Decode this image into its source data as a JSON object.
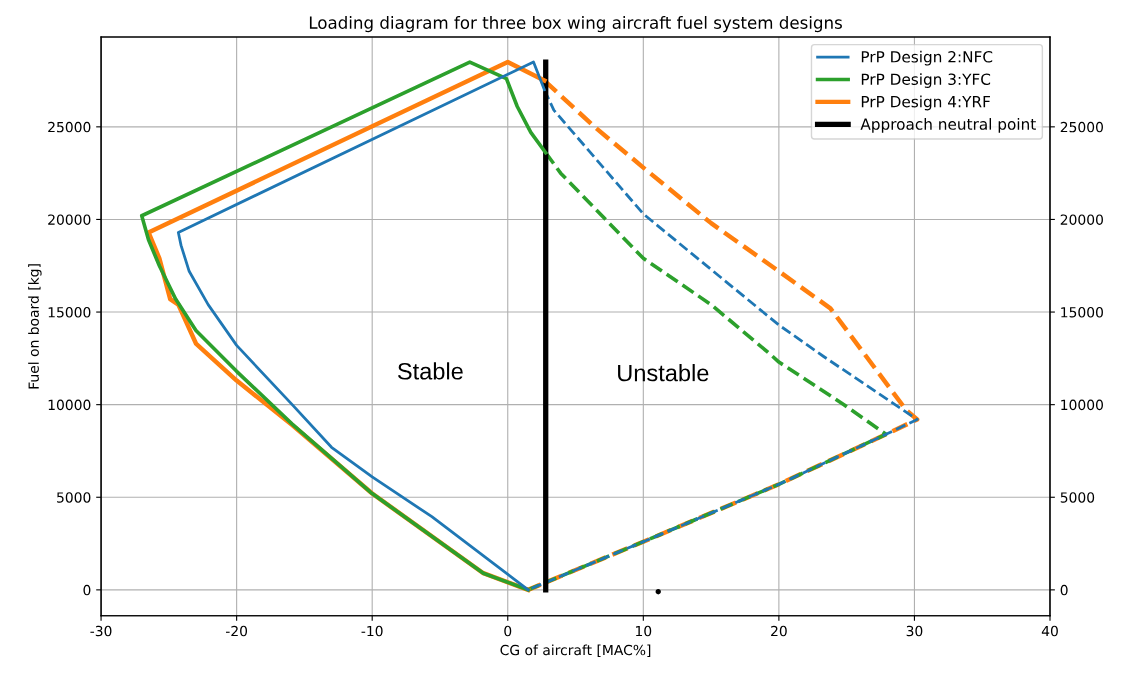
{
  "chart_data": {
    "type": "line",
    "title": "Loading diagram for three box wing aircraft fuel system designs",
    "xlabel": "CG of aircraft [MAC%]",
    "ylabel": "Fuel on board [kg]",
    "xlim": [
      -30,
      40
    ],
    "xticks": [
      -30,
      -20,
      -10,
      0,
      10,
      20,
      30,
      40
    ],
    "ylim": [
      -1400,
      29850
    ],
    "yticks": [
      0,
      5000,
      10000,
      15000,
      20000,
      25000
    ],
    "y2lim": [
      -1400,
      29850
    ],
    "y2ticks": [
      0,
      5000,
      10000,
      15000,
      20000,
      25000
    ],
    "grid": true,
    "legend": "top right",
    "annotations": [
      "Stable",
      "Unstable"
    ],
    "series": [
      {
        "name": "PrP Design 2:NFC",
        "color": "#1f77b4",
        "line_style": "solid",
        "x": [
          1.5,
          -5.6,
          -10.0,
          -13.0,
          -15.9,
          -20.0,
          -22.1,
          -23.5,
          -24.1,
          -24.3,
          1.9,
          2.7
        ],
        "values": [
          0,
          3950,
          6100,
          7700,
          10000,
          13200,
          15400,
          17200,
          18600,
          19300,
          28500,
          27000
        ]
      },
      {
        "name": "PrP Design 3:YFC",
        "color": "#2ca02c",
        "line_style": "solid",
        "x": [
          1.5,
          -1.8,
          -10.0,
          -15.9,
          -20.0,
          -23.0,
          -24.5,
          -25.7,
          -26.5,
          -27.0,
          -2.8,
          -0.1,
          0.7,
          1.7,
          2.8
        ],
        "values": [
          0,
          900,
          5200,
          8950,
          11800,
          14000,
          15700,
          17500,
          18900,
          20200,
          28500,
          27600,
          26100,
          24700,
          23600
        ]
      },
      {
        "name": "PrP Design 4:YRF",
        "color": "#ff7f0e",
        "line_style": "solid",
        "x": [
          1.5,
          -1.8,
          -10.0,
          -15.9,
          -20.0,
          -23.0,
          -24.3,
          -24.9,
          -25.7,
          -26.5,
          0.0,
          2.7
        ],
        "values": [
          0,
          900,
          5200,
          8900,
          11300,
          13300,
          15400,
          15700,
          17900,
          19300,
          28500,
          27500
        ]
      },
      {
        "name": "Approach neutral point",
        "color": "#000000",
        "line_style": "solid",
        "x": [
          2.8,
          2.8
        ],
        "values": [
          0,
          28500
        ]
      },
      {
        "color": "#1f77b4",
        "line_style": "dashed",
        "x": [
          2.7,
          3.4,
          10.0,
          15.0,
          20.0,
          23.3,
          30.2,
          27.9,
          20.0,
          10.0,
          2.8,
          1.5
        ],
        "values": [
          27000,
          25900,
          20300,
          17300,
          14300,
          12600,
          9200,
          8400,
          5700,
          2600,
          400,
          0
        ]
      },
      {
        "color": "#2ca02c",
        "line_style": "dashed",
        "x": [
          2.8,
          3.9,
          10.0,
          15.0,
          19.4,
          20.0,
          24.8,
          27.9,
          20.0,
          10.0,
          2.8,
          1.5
        ],
        "values": [
          23600,
          22500,
          17900,
          15400,
          12700,
          12300,
          10000,
          8400,
          5700,
          2600,
          400,
          0
        ]
      },
      {
        "color": "#ff7f0e",
        "line_style": "dashed",
        "x": [
          2.7,
          6.4,
          10.0,
          15.0,
          20.0,
          23.8,
          29.4,
          30.2,
          27.9,
          20.0,
          10.0,
          2.8,
          1.5
        ],
        "values": [
          27500,
          25000,
          22800,
          19800,
          17200,
          15200,
          9700,
          9200,
          8400,
          5700,
          2600,
          400,
          0
        ]
      },
      {
        "type": "scatter",
        "color": "#000000",
        "marker": "circle",
        "x": [
          11.1
        ],
        "values": [
          -100
        ]
      }
    ]
  }
}
